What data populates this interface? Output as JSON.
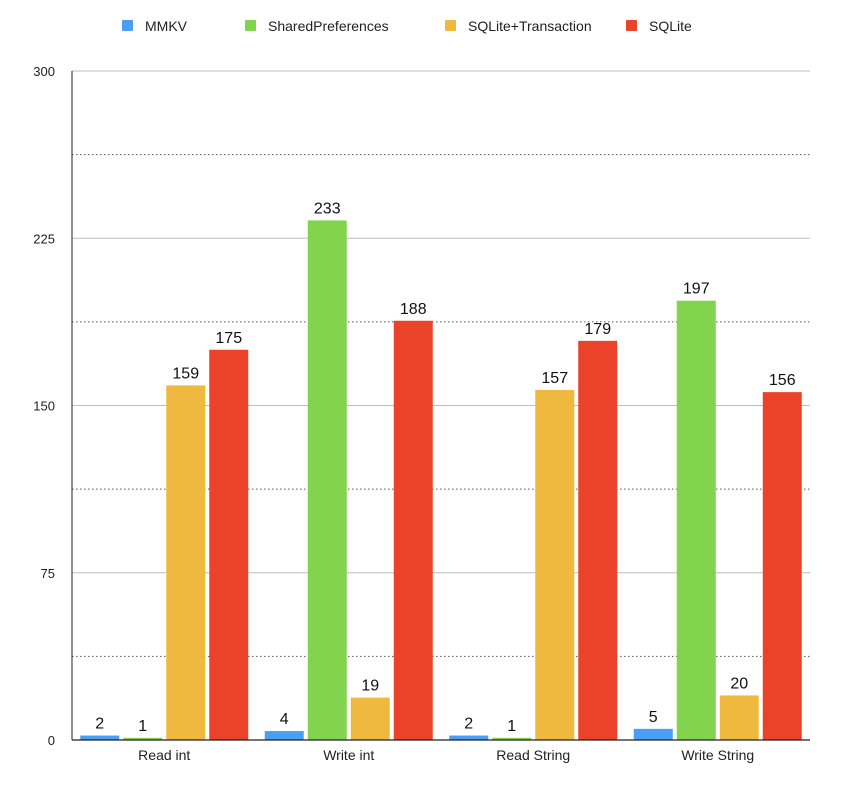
{
  "chart_data": {
    "type": "bar",
    "categories": [
      "Read int",
      "Write int",
      "Read String",
      "Write String"
    ],
    "series": [
      {
        "name": "MMKV",
        "color": "#4a9ff5",
        "values": [
          2,
          4,
          2,
          5
        ]
      },
      {
        "name": "SharedPreferences",
        "color": "#82d44f",
        "values": [
          1,
          233,
          1,
          197
        ]
      },
      {
        "name": "SQLite+Transaction",
        "color": "#efb93f",
        "values": [
          159,
          19,
          157,
          20
        ]
      },
      {
        "name": "SQLite",
        "color": "#ea4329",
        "values": [
          175,
          188,
          179,
          156
        ]
      }
    ],
    "y_ticks": [
      "0",
      "75",
      "150",
      "225",
      "300"
    ],
    "ylim": [
      0,
      300
    ],
    "title": "",
    "xlabel": "",
    "ylabel": "",
    "legend_position": "top",
    "grid": true
  }
}
